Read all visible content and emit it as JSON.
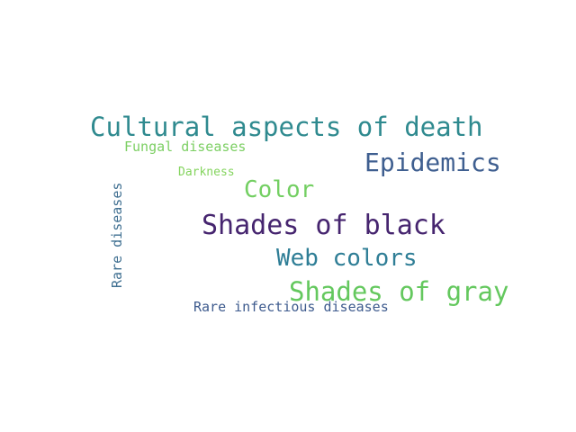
{
  "words": [
    {
      "text": "Cultural aspects of death",
      "color": "#2f8a8f"
    },
    {
      "text": "Fungal diseases",
      "color": "#7ccf63"
    },
    {
      "text": "Epidemics",
      "color": "#3f5f90"
    },
    {
      "text": "Darkness",
      "color": "#84d45e"
    },
    {
      "text": "Color",
      "color": "#73cf62"
    },
    {
      "text": "Shades of black",
      "color": "#46256f"
    },
    {
      "text": "Web colors",
      "color": "#2f7e96"
    },
    {
      "text": "Shades of gray",
      "color": "#64c85e"
    },
    {
      "text": "Rare infectious diseases",
      "color": "#3e5b8e"
    },
    {
      "text": "Rare diseases",
      "color": "#3f6f91"
    }
  ]
}
